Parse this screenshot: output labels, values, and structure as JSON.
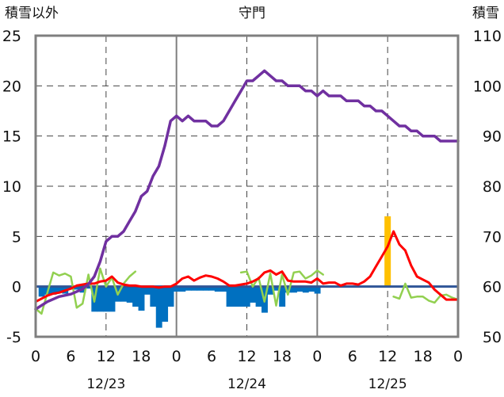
{
  "chart_data": {
    "type": "bar+line",
    "title": "守門",
    "y_left_label": "積雪以外",
    "y_right_label": "積雪",
    "y_left_ticks": [
      25,
      20,
      15,
      10,
      5,
      0,
      -5
    ],
    "y_right_ticks": [
      110,
      100,
      90,
      80,
      70,
      60,
      50
    ],
    "x_tick_labels": [
      "0",
      "6",
      "12",
      "18",
      "0",
      "6",
      "12",
      "18",
      "0",
      "6",
      "12",
      "18",
      "0"
    ],
    "date_labels": [
      "12/23",
      "12/24",
      "12/25"
    ],
    "ylim_left": [
      -5,
      25
    ],
    "ylim_right": [
      50,
      110
    ],
    "x_range_hours": [
      0,
      72
    ],
    "grid": "dashed",
    "colors": {
      "snow_depth": "#7030A0",
      "temperature": "#FF0000",
      "wind_chill_green": "#92D050",
      "precip_neg_bars": "#0070C0",
      "precip_pos_bars": "#FFC000"
    },
    "snow_depth": {
      "x": [
        0,
        2,
        4,
        6,
        8,
        9,
        10,
        11,
        12,
        13,
        14,
        15,
        16,
        17,
        18,
        19,
        20,
        21,
        22,
        23,
        24,
        25,
        26,
        27,
        28,
        29,
        30,
        31,
        32,
        33,
        34,
        35,
        36,
        37,
        38,
        39,
        40,
        41,
        42,
        43,
        44,
        45,
        46,
        47,
        48,
        49,
        50,
        51,
        52,
        53,
        54,
        55,
        56,
        57,
        58,
        59,
        60,
        61,
        62,
        63,
        64,
        65,
        66,
        67,
        68,
        69,
        70,
        71,
        72
      ],
      "values": [
        55.5,
        57,
        58,
        58.5,
        59.5,
        60.5,
        62,
        65,
        69,
        70,
        70,
        71,
        73,
        75,
        78,
        79,
        82,
        84,
        88,
        93,
        94,
        93,
        94,
        93,
        93,
        93,
        92,
        92,
        93,
        95,
        97,
        99,
        101,
        101,
        102,
        103,
        102,
        101,
        101,
        100,
        100,
        100,
        99,
        99,
        98,
        99,
        98,
        98,
        98,
        97,
        97,
        97,
        96,
        96,
        95,
        95,
        94,
        93,
        92,
        92,
        91,
        91,
        90,
        90,
        90,
        89,
        89,
        89,
        89
      ]
    },
    "temperature": {
      "x": [
        0,
        1,
        2,
        3,
        4,
        5,
        6,
        7,
        8,
        9,
        10,
        11,
        12,
        13,
        14,
        15,
        16,
        17,
        18,
        19,
        20,
        21,
        22,
        23,
        24,
        25,
        26,
        27,
        28,
        29,
        30,
        31,
        32,
        33,
        34,
        35,
        36,
        37,
        38,
        39,
        40,
        41,
        42,
        43,
        44,
        45,
        46,
        47,
        48,
        49,
        50,
        51,
        52,
        53,
        54,
        55,
        56,
        57,
        58,
        59,
        60,
        61,
        62,
        63,
        64,
        65,
        66,
        67,
        68,
        69,
        70,
        71,
        72
      ],
      "values": [
        -1.5,
        -1.2,
        -0.9,
        -0.7,
        -0.6,
        -0.4,
        -0.2,
        0.1,
        0.2,
        0.3,
        0.3,
        0.5,
        0.6,
        1.0,
        0.4,
        0.2,
        0.1,
        0.1,
        0.0,
        0.0,
        0.0,
        -0.1,
        0.0,
        0.0,
        0.3,
        0.8,
        1.0,
        0.6,
        0.9,
        1.1,
        1.0,
        0.8,
        0.5,
        0.1,
        0.1,
        0.2,
        0.3,
        0.5,
        0.8,
        1.4,
        1.6,
        1.2,
        1.5,
        0.6,
        0.5,
        0.5,
        0.5,
        0.4,
        0.8,
        0.3,
        0.4,
        0.4,
        0.1,
        0.3,
        0.3,
        0.2,
        0.5,
        1.0,
        2.0,
        3.0,
        4.0,
        5.5,
        4.2,
        3.6,
        2.1,
        1.0,
        0.7,
        0.4,
        -0.3,
        -0.8,
        -1.3,
        -1.3,
        -1.3
      ]
    },
    "green_series": {
      "segments": [
        {
          "x": [
            0,
            1,
            2,
            3,
            4,
            5,
            6,
            7,
            8,
            9,
            10,
            11,
            12,
            13,
            14,
            15,
            16,
            17
          ],
          "values": [
            -2.2,
            -2.7,
            -0.6,
            1.4,
            1.1,
            1.3,
            1.0,
            -2.1,
            -1.7,
            1.2,
            -1.5,
            1.8,
            0.0,
            0.9,
            -0.8,
            0.3,
            1.0,
            1.5
          ]
        },
        {
          "x": [
            35,
            36,
            37,
            38,
            39,
            40,
            41,
            42,
            43,
            44,
            45,
            46,
            47,
            48,
            49
          ],
          "values": [
            1.4,
            1.5,
            0.0,
            0.9,
            -1.5,
            1.3,
            -1.9,
            1.2,
            -0.8,
            1.4,
            1.5,
            0.8,
            1.1,
            1.6,
            1.2
          ]
        },
        {
          "x": [
            61,
            62,
            63,
            64,
            65,
            66,
            67,
            68,
            69,
            70,
            71,
            72
          ],
          "values": [
            -1.0,
            -1.2,
            0.3,
            -1.1,
            -1.0,
            -1.0,
            -1.4,
            -1.6,
            -0.9,
            -0.8,
            -1.1,
            -1.3
          ]
        }
      ]
    },
    "precip_bars": {
      "width_hours": 1,
      "negative": {
        "x": [
          1,
          2,
          3,
          4,
          5,
          6,
          7,
          8,
          9,
          10,
          11,
          12,
          13,
          14,
          15,
          16,
          17,
          18,
          19,
          20,
          21,
          22,
          23,
          24,
          25,
          26,
          27,
          28,
          29,
          30,
          31,
          32,
          33,
          34,
          35,
          36,
          37,
          38,
          39,
          40,
          41,
          42,
          43,
          44,
          45,
          46,
          47,
          48
        ],
        "values": [
          -1.0,
          -0.8,
          -0.8,
          -0.6,
          -0.7,
          -0.3,
          -0.3,
          -0.6,
          -0.2,
          -2.5,
          -2.5,
          -2.5,
          -2.5,
          -1.5,
          -1.5,
          -1.6,
          -2.0,
          -2.4,
          -0.8,
          -2.0,
          -4.1,
          -3.5,
          -2.0,
          -0.5,
          -0.5,
          -0.4,
          -0.4,
          -0.4,
          -0.4,
          -0.4,
          -0.5,
          -0.5,
          -2.0,
          -2.0,
          -2.0,
          -2.0,
          -1.6,
          -2.0,
          -2.6,
          -0.8,
          -0.4,
          -2.0,
          -0.6,
          -0.6,
          -0.5,
          -0.6,
          -0.5,
          -0.7
        ]
      },
      "positive": {
        "x": [
          60
        ],
        "values": [
          7.0
        ]
      }
    }
  }
}
